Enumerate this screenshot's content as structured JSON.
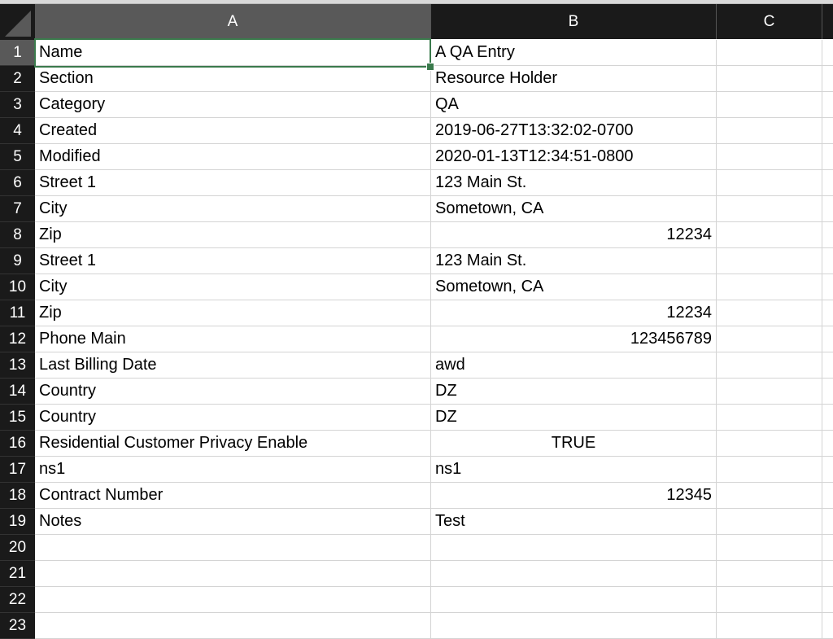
{
  "columns": [
    "A",
    "B",
    "C"
  ],
  "selected_cell": "A1",
  "accent_color": "#3a7a4c",
  "rows": [
    {
      "n": "1",
      "a": "Name",
      "b": "A QA Entry",
      "t": "text"
    },
    {
      "n": "2",
      "a": "Section",
      "b": "Resource Holder",
      "t": "text"
    },
    {
      "n": "3",
      "a": "Category",
      "b": "QA",
      "t": "text"
    },
    {
      "n": "4",
      "a": "Created",
      "b": "2019-06-27T13:32:02-0700",
      "t": "text"
    },
    {
      "n": "5",
      "a": "Modified",
      "b": "2020-01-13T12:34:51-0800",
      "t": "text"
    },
    {
      "n": "6",
      "a": "Street 1",
      "b": "123 Main St.",
      "t": "text"
    },
    {
      "n": "7",
      "a": "City",
      "b": "Sometown, CA",
      "t": "text"
    },
    {
      "n": "8",
      "a": "Zip",
      "b": "12234",
      "t": "num"
    },
    {
      "n": "9",
      "a": "Street 1",
      "b": "123 Main St.",
      "t": "text"
    },
    {
      "n": "10",
      "a": "City",
      "b": "Sometown, CA",
      "t": "text"
    },
    {
      "n": "11",
      "a": "Zip",
      "b": "12234",
      "t": "num"
    },
    {
      "n": "12",
      "a": "Phone Main",
      "b": "123456789",
      "t": "num"
    },
    {
      "n": "13",
      "a": "Last Billing Date",
      "b": "awd",
      "t": "text"
    },
    {
      "n": "14",
      "a": "Country",
      "b": "DZ",
      "t": "text"
    },
    {
      "n": "15",
      "a": "Country",
      "b": "DZ",
      "t": "text"
    },
    {
      "n": "16",
      "a": "Residential Customer Privacy Enable",
      "b": "TRUE",
      "t": "bool"
    },
    {
      "n": "17",
      "a": "ns1",
      "b": "ns1",
      "t": "text"
    },
    {
      "n": "18",
      "a": "Contract Number",
      "b": "12345",
      "t": "num"
    },
    {
      "n": "19",
      "a": "Notes",
      "b": "Test",
      "t": "text"
    },
    {
      "n": "20",
      "a": "",
      "b": "",
      "t": "text"
    },
    {
      "n": "21",
      "a": "",
      "b": "",
      "t": "text"
    },
    {
      "n": "22",
      "a": "",
      "b": "",
      "t": "text"
    },
    {
      "n": "23",
      "a": "",
      "b": "",
      "t": "text"
    }
  ]
}
